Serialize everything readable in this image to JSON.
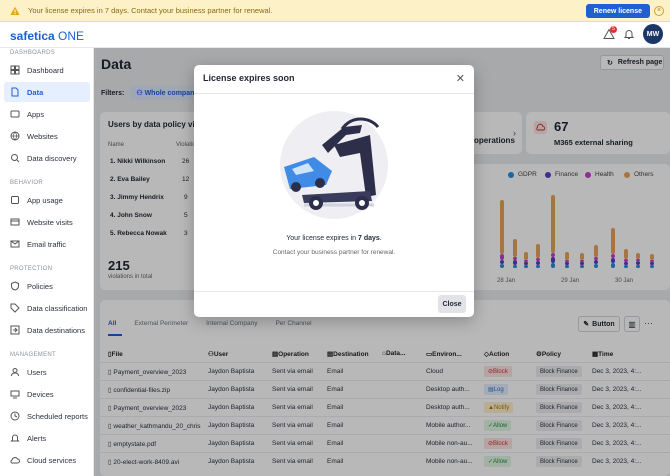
{
  "banner": {
    "message": "Your license expires in 7 days. Contact your business partner for renewal.",
    "renew_label": "Renew license"
  },
  "app": {
    "logo": "safetica",
    "logo_suffix": "ONE",
    "notif_count": "5",
    "avatar": "MW"
  },
  "sidebar": {
    "sections": [
      "DASHBOARDS",
      "BEHAVIOR",
      "PROTECTION",
      "MANAGEMENT"
    ],
    "items": [
      {
        "label": "Dashboard",
        "icon": "dashboard-icon"
      },
      {
        "label": "Data",
        "icon": "data-icon"
      },
      {
        "label": "Apps",
        "icon": "apps-icon"
      },
      {
        "label": "Websites",
        "icon": "globe-icon"
      },
      {
        "label": "Data discovery",
        "icon": "discovery-icon"
      },
      {
        "label": "App usage",
        "icon": "app-usage-icon"
      },
      {
        "label": "Website visits",
        "icon": "website-visits-icon"
      },
      {
        "label": "Email traffic",
        "icon": "email-icon"
      },
      {
        "label": "Policies",
        "icon": "policies-icon"
      },
      {
        "label": "Data classification",
        "icon": "tag-icon"
      },
      {
        "label": "Data destinations",
        "icon": "destinations-icon"
      },
      {
        "label": "Users",
        "icon": "users-icon"
      },
      {
        "label": "Devices",
        "icon": "devices-icon"
      },
      {
        "label": "Scheduled reports",
        "icon": "reports-icon"
      },
      {
        "label": "Alerts",
        "icon": "bell-icon"
      },
      {
        "label": "Cloud services",
        "icon": "cloud-icon"
      }
    ]
  },
  "page": {
    "title": "Data",
    "refresh_label": "Refresh page",
    "filters_label": "Filters:",
    "filter_chip": "Whole company"
  },
  "users_card": {
    "title": "Users by data policy viol",
    "col_name": "Name",
    "col_violations": "Violations",
    "users": [
      {
        "name": "1. Nikki Wilkinson",
        "v": "26"
      },
      {
        "name": "2. Eva Bailey",
        "v": "12"
      },
      {
        "name": "3. Jimmy Hendrix",
        "v": "9"
      },
      {
        "name": "4. John Snow",
        "v": "5"
      },
      {
        "name": "5. Rebecca Nowak",
        "v": "3"
      }
    ],
    "total": "215",
    "total_label": "violations in total"
  },
  "ops_card": {
    "label": "operations"
  },
  "m365_card": {
    "value": "67",
    "label": "M365 external sharing"
  },
  "chart": {
    "legend": [
      "GDPR",
      "Finance",
      "Health",
      "Others"
    ],
    "colors": [
      "#1f8fe0",
      "#5a3ec8",
      "#c73fd1",
      "#e8a25a"
    ],
    "xlabels": [
      "28 Jan",
      "29 Jan",
      "30 Jan"
    ]
  },
  "chart_data": {
    "type": "bar",
    "series": [
      {
        "name": "GDPR"
      },
      {
        "name": "Finance"
      },
      {
        "name": "Health"
      },
      {
        "name": "Others"
      }
    ],
    "x": [
      "28 Jan",
      "29 Jan",
      "30 Jan"
    ]
  },
  "table": {
    "tabs": [
      "All",
      "External Perimeter",
      "Internal Company",
      "Per Channel"
    ],
    "button": "Button",
    "headers": [
      "File",
      "User",
      "Operation",
      "Destination",
      "Data...",
      "Environ...",
      "Action",
      "Policy",
      "Time"
    ],
    "rows": [
      {
        "file": "Payment_overview_2023",
        "user": "Jaydon Baptista",
        "op": "Sent via email",
        "dest": "Email",
        "env": "Cloud",
        "action": "Block",
        "policy": "Block Finance",
        "time": "Dec 3, 2023, 4:..."
      },
      {
        "file": "confidential-files.zip",
        "user": "Jaydon Baptista",
        "op": "Sent via email",
        "dest": "Email",
        "env": "Desktop auth...",
        "action": "Log",
        "policy": "Block Finance",
        "time": "Dec 3, 2023, 4:..."
      },
      {
        "file": "Payment_overview_2023",
        "user": "Jaydon Baptista",
        "op": "Sent via email",
        "dest": "Email",
        "env": "Desktop auth...",
        "action": "Notify",
        "policy": "Block Finance",
        "time": "Dec 3, 2023, 4:..."
      },
      {
        "file": "weather_kathmandu_20_chris",
        "user": "Jaydon Baptista",
        "op": "Sent via email",
        "dest": "Email",
        "env": "Mobile author...",
        "action": "Allow",
        "policy": "Block Finance",
        "time": "Dec 3, 2023, 4:..."
      },
      {
        "file": "emptystate.pdf",
        "user": "Jaydon Baptista",
        "op": "Sent via email",
        "dest": "Email",
        "env": "Mobile non-au...",
        "action": "Block",
        "policy": "Block Finance",
        "time": "Dec 3, 2023, 4:..."
      },
      {
        "file": "20-elect-work-8409.avi",
        "user": "Jaydon Baptista",
        "op": "Sent via email",
        "dest": "Email",
        "env": "Mobile non-au...",
        "action": "Allow",
        "policy": "Block Finance",
        "time": "Dec 3, 2023, 4:..."
      }
    ]
  },
  "modal": {
    "title": "License expires soon",
    "line1_pre": "Your license expires in ",
    "line1_bold": "7 days",
    "line1_post": ".",
    "line2": "Contact your business partner for renewal.",
    "close_label": "Close"
  }
}
